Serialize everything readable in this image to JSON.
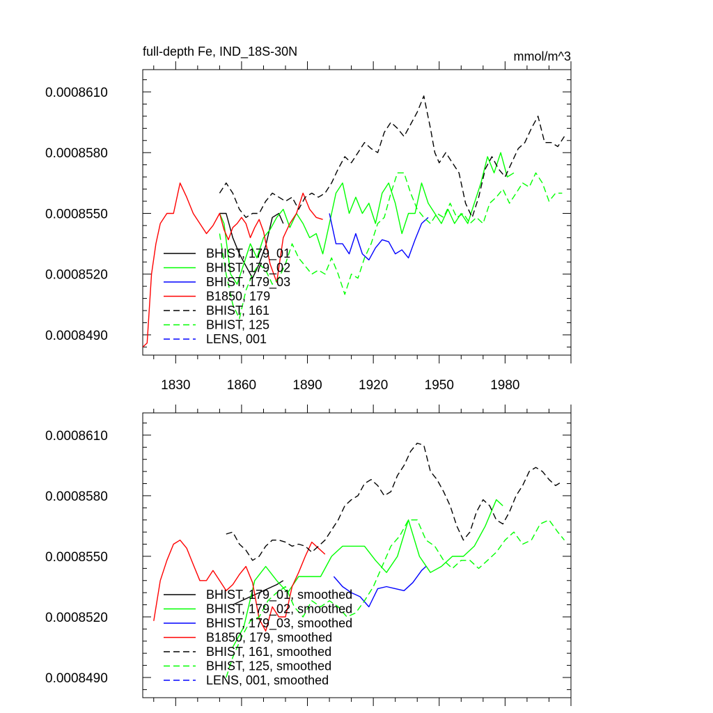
{
  "chart_data": [
    {
      "type": "line",
      "title": "full-depth Fe, IND_18S-30N",
      "units": "mmol/m^3",
      "xlim": [
        1815,
        2010
      ],
      "ylim": [
        0.000848,
        0.0008621
      ],
      "x_ticks": [
        1830,
        1860,
        1890,
        1920,
        1950,
        1980
      ],
      "y_ticks": [
        0.000849,
        0.000852,
        0.000855,
        0.000858,
        0.000861
      ],
      "y_tick_labels": [
        "0.0008490",
        "0.0008520",
        "0.0008550",
        "0.0008580",
        "0.0008610"
      ],
      "legend_position": "lower-left",
      "series": [
        {
          "name": "BHIST, 179_01",
          "color": "#000000",
          "dash": "solid",
          "x": [
            1850,
            1853,
            1856,
            1859,
            1862,
            1865,
            1868,
            1871,
            1874,
            1877,
            1879
          ],
          "values": [
            0.000855,
            0.000855,
            0.0008538,
            0.000853,
            0.0008524,
            0.0008518,
            0.0008525,
            0.0008534,
            0.0008548,
            0.000855,
            0.0008545
          ]
        },
        {
          "name": "BHIST, 179_02",
          "color": "#00ff00",
          "dash": "solid",
          "x": [
            1850,
            1852,
            1855,
            1858,
            1861,
            1864,
            1867,
            1870,
            1873,
            1876,
            1879,
            1882,
            1885,
            1888,
            1891,
            1894,
            1897,
            1900,
            1903,
            1906,
            1909,
            1912,
            1915,
            1918,
            1921,
            1924,
            1927,
            1930,
            1933,
            1936,
            1939,
            1942,
            1945,
            1948,
            1951,
            1954,
            1957,
            1960,
            1963,
            1966,
            1969,
            1972,
            1975,
            1978,
            1981,
            1984
          ],
          "values": [
            0.000855,
            0.0008545,
            0.000852,
            0.0008515,
            0.0008525,
            0.0008535,
            0.0008528,
            0.0008538,
            0.0008542,
            0.0008548,
            0.0008552,
            0.0008543,
            0.000855,
            0.0008545,
            0.0008538,
            0.000854,
            0.000853,
            0.0008545,
            0.000856,
            0.0008565,
            0.000855,
            0.0008558,
            0.000855,
            0.0008555,
            0.0008545,
            0.000856,
            0.0008565,
            0.0008555,
            0.000854,
            0.000855,
            0.000855,
            0.0008565,
            0.0008555,
            0.000855,
            0.0008545,
            0.0008552,
            0.0008545,
            0.000855,
            0.0008545,
            0.0008555,
            0.0008565,
            0.0008578,
            0.000857,
            0.000858,
            0.0008568,
            0.000857
          ]
        },
        {
          "name": "BHIST, 179_03",
          "color": "#0000ff",
          "dash": "solid",
          "x": [
            1900,
            1903,
            1906,
            1909,
            1912,
            1915,
            1918,
            1921,
            1924,
            1927,
            1930,
            1933,
            1936,
            1939,
            1942,
            1945
          ],
          "values": [
            0.000855,
            0.0008535,
            0.0008535,
            0.000853,
            0.000854,
            0.000853,
            0.0008527,
            0.0008533,
            0.0008537,
            0.0008536,
            0.000853,
            0.0008532,
            0.0008528,
            0.0008537,
            0.0008545,
            0.0008548
          ]
        },
        {
          "name": "B1850, 179",
          "color": "#ff0000",
          "dash": "solid",
          "x": [
            1815,
            1817,
            1819,
            1821,
            1823,
            1826,
            1829,
            1832,
            1835,
            1838,
            1841,
            1844,
            1847,
            1850,
            1852,
            1854,
            1856,
            1858,
            1860,
            1862,
            1864,
            1866,
            1868,
            1870,
            1873,
            1876,
            1879,
            1882,
            1885,
            1888,
            1891,
            1894,
            1897
          ],
          "values": [
            0.0008484,
            0.0008486,
            0.000852,
            0.0008535,
            0.0008545,
            0.000855,
            0.000855,
            0.0008565,
            0.0008558,
            0.000855,
            0.0008545,
            0.000854,
            0.0008544,
            0.000855,
            0.0008542,
            0.0008537,
            0.0008543,
            0.0008545,
            0.0008548,
            0.0008545,
            0.0008538,
            0.0008543,
            0.0008547,
            0.0008541,
            0.0008525,
            0.0008516,
            0.0008538,
            0.0008545,
            0.000855,
            0.000856,
            0.0008552,
            0.0008548,
            0.0008547
          ]
        },
        {
          "name": "BHIST, 161",
          "color": "#000000",
          "dash": "dashed",
          "x": [
            1850,
            1853,
            1856,
            1859,
            1862,
            1865,
            1868,
            1871,
            1874,
            1877,
            1880,
            1883,
            1886,
            1889,
            1892,
            1895,
            1898,
            1901,
            1904,
            1907,
            1910,
            1913,
            1916,
            1919,
            1922,
            1925,
            1928,
            1931,
            1934,
            1937,
            1940,
            1943,
            1946,
            1948,
            1950,
            1953,
            1956,
            1959,
            1962,
            1965,
            1968,
            1971,
            1974,
            1977,
            1980,
            1983,
            1986,
            1989,
            1992,
            1995,
            1998,
            2001,
            2004,
            2007
          ],
          "values": [
            0.000856,
            0.0008565,
            0.000856,
            0.0008552,
            0.0008548,
            0.000855,
            0.000855,
            0.0008556,
            0.000856,
            0.0008558,
            0.0008556,
            0.0008558,
            0.0008552,
            0.0008558,
            0.000856,
            0.0008558,
            0.000856,
            0.0008565,
            0.0008572,
            0.0008578,
            0.0008575,
            0.000858,
            0.0008585,
            0.0008582,
            0.000858,
            0.000859,
            0.0008595,
            0.0008592,
            0.0008588,
            0.0008594,
            0.00086,
            0.0008608,
            0.0008592,
            0.000858,
            0.0008575,
            0.000858,
            0.0008575,
            0.000857,
            0.0008555,
            0.0008548,
            0.0008558,
            0.0008572,
            0.0008578,
            0.0008572,
            0.0008568,
            0.0008575,
            0.0008582,
            0.0008585,
            0.0008592,
            0.0008598,
            0.0008585,
            0.0008585,
            0.0008583,
            0.0008588
          ]
        },
        {
          "name": "BHIST, 125",
          "color": "#00ff00",
          "dash": "dashed",
          "x": [
            1850,
            1853,
            1856,
            1859,
            1862,
            1865,
            1868,
            1871,
            1874,
            1877,
            1880,
            1883,
            1886,
            1889,
            1892,
            1895,
            1898,
            1901,
            1904,
            1907,
            1910,
            1913,
            1916,
            1919,
            1922,
            1925,
            1928,
            1931,
            1934,
            1937,
            1940,
            1943,
            1946,
            1949,
            1952,
            1955,
            1958,
            1961,
            1964,
            1967,
            1970,
            1973,
            1976,
            1979,
            1982,
            1985,
            1988,
            1991,
            1994,
            1997,
            2000,
            2003,
            2006
          ],
          "values": [
            0.000854,
            0.000852,
            0.0008505,
            0.0008498,
            0.0008512,
            0.000852,
            0.0008525,
            0.0008522,
            0.0008515,
            0.0008518,
            0.0008525,
            0.0008535,
            0.0008528,
            0.0008524,
            0.000852,
            0.0008522,
            0.000852,
            0.0008528,
            0.000852,
            0.000851,
            0.000852,
            0.0008518,
            0.0008528,
            0.0008535,
            0.0008545,
            0.0008548,
            0.000856,
            0.000857,
            0.000857,
            0.000856,
            0.0008552,
            0.0008548,
            0.0008545,
            0.000855,
            0.0008548,
            0.0008555,
            0.0008548,
            0.000855,
            0.0008545,
            0.0008548,
            0.0008545,
            0.0008555,
            0.0008558,
            0.0008562,
            0.0008555,
            0.000856,
            0.0008565,
            0.0008563,
            0.000857,
            0.0008565,
            0.0008556,
            0.000856,
            0.000856
          ]
        },
        {
          "name": "LENS, 001",
          "color": "#0000ff",
          "dash": "dashed",
          "x": [],
          "values": []
        }
      ]
    },
    {
      "type": "line",
      "xlim": [
        1815,
        2010
      ],
      "ylim": [
        0.000848,
        0.0008621
      ],
      "y_ticks": [
        0.000849,
        0.000852,
        0.000855,
        0.000858,
        0.000861
      ],
      "y_tick_labels": [
        "0.0008490",
        "0.0008520",
        "0.0008550",
        "0.0008580",
        "0.0008610"
      ],
      "legend_position": "lower-left",
      "series": [
        {
          "name": "BHIST, 179_01, smoothed",
          "color": "#000000",
          "dash": "solid",
          "x": [
            1856,
            1860,
            1864,
            1868,
            1872,
            1876,
            1879
          ],
          "values": [
            0.0008526,
            0.0008528,
            0.000853,
            0.0008532,
            0.0008534,
            0.0008536,
            0.0008538
          ]
        },
        {
          "name": "BHIST, 179_02, smoothed",
          "color": "#00ff00",
          "dash": "solid",
          "x": [
            1856,
            1861,
            1866,
            1871,
            1876,
            1881,
            1886,
            1891,
            1896,
            1901,
            1906,
            1911,
            1916,
            1921,
            1926,
            1931,
            1936,
            1941,
            1946,
            1951,
            1956,
            1961,
            1966,
            1971,
            1976,
            1979
          ],
          "values": [
            0.0008505,
            0.0008515,
            0.0008538,
            0.0008545,
            0.0008538,
            0.0008532,
            0.000854,
            0.000854,
            0.000854,
            0.000855,
            0.0008555,
            0.0008555,
            0.0008555,
            0.0008548,
            0.0008542,
            0.000855,
            0.0008568,
            0.000855,
            0.0008542,
            0.0008545,
            0.000855,
            0.000855,
            0.0008555,
            0.0008565,
            0.0008578,
            0.0008575
          ]
        },
        {
          "name": "BHIST, 179_03, smoothed",
          "color": "#0000ff",
          "dash": "solid",
          "x": [
            1902,
            1906,
            1910,
            1914,
            1918,
            1922,
            1926,
            1930,
            1934,
            1938,
            1942,
            1944
          ],
          "values": [
            0.000854,
            0.0008535,
            0.0008532,
            0.000853,
            0.0008525,
            0.0008534,
            0.0008535,
            0.0008534,
            0.0008533,
            0.0008537,
            0.0008543,
            0.0008545
          ]
        },
        {
          "name": "B1850, 179, smoothed",
          "color": "#ff0000",
          "dash": "solid",
          "x": [
            1820,
            1823,
            1826,
            1829,
            1832,
            1835,
            1838,
            1841,
            1844,
            1847,
            1850,
            1853,
            1856,
            1859,
            1862,
            1865,
            1868,
            1871,
            1874,
            1877,
            1880,
            1883,
            1886,
            1889,
            1892,
            1895,
            1898
          ],
          "values": [
            0.0008518,
            0.0008538,
            0.0008548,
            0.0008556,
            0.0008558,
            0.0008554,
            0.0008546,
            0.0008538,
            0.0008538,
            0.0008543,
            0.0008538,
            0.0008533,
            0.0008536,
            0.0008541,
            0.0008545,
            0.0008537,
            0.0008519,
            0.0008513,
            0.0008525,
            0.000852,
            0.000852,
            0.0008535,
            0.0008542,
            0.000855,
            0.0008557,
            0.0008554,
            0.0008551
          ]
        },
        {
          "name": "BHIST, 161, smoothed",
          "color": "#000000",
          "dash": "dashed",
          "x": [
            1853,
            1856,
            1859,
            1862,
            1865,
            1868,
            1871,
            1874,
            1877,
            1880,
            1883,
            1886,
            1889,
            1892,
            1895,
            1898,
            1901,
            1904,
            1907,
            1910,
            1913,
            1916,
            1919,
            1922,
            1925,
            1928,
            1931,
            1934,
            1937,
            1940,
            1943,
            1946,
            1949,
            1952,
            1955,
            1958,
            1961,
            1964,
            1967,
            1970,
            1973,
            1976,
            1979,
            1982,
            1985,
            1988,
            1991,
            1994,
            1997,
            2000,
            2003,
            2006
          ],
          "values": [
            0.0008561,
            0.0008562,
            0.0008556,
            0.0008553,
            0.0008548,
            0.000855,
            0.0008555,
            0.0008558,
            0.0008558,
            0.0008557,
            0.0008555,
            0.0008556,
            0.0008555,
            0.0008552,
            0.0008555,
            0.0008558,
            0.0008563,
            0.0008568,
            0.0008575,
            0.0008578,
            0.000858,
            0.0008586,
            0.0008588,
            0.0008585,
            0.000858,
            0.0008582,
            0.000859,
            0.0008595,
            0.0008602,
            0.0008606,
            0.0008605,
            0.0008592,
            0.0008588,
            0.0008582,
            0.0008575,
            0.0008565,
            0.0008558,
            0.0008562,
            0.0008572,
            0.0008578,
            0.0008575,
            0.0008568,
            0.0008566,
            0.0008572,
            0.000858,
            0.0008585,
            0.0008592,
            0.0008594,
            0.0008592,
            0.0008588,
            0.0008585,
            0.0008587
          ]
        },
        {
          "name": "BHIST, 125, smoothed",
          "color": "#00ff00",
          "dash": "dashed",
          "x": [
            1853,
            1856,
            1860,
            1864,
            1868,
            1872,
            1876,
            1880,
            1884,
            1888,
            1892,
            1896,
            1900,
            1904,
            1908,
            1912,
            1916,
            1920,
            1924,
            1928,
            1932,
            1936,
            1940,
            1944,
            1948,
            1952,
            1956,
            1960,
            1964,
            1968,
            1972,
            1976,
            1980,
            1984,
            1988,
            1992,
            1996,
            2000,
            2004,
            2007
          ],
          "values": [
            0.000849,
            0.00085,
            0.000851,
            0.0008518,
            0.000852,
            0.0008528,
            0.0008532,
            0.0008535,
            0.0008525,
            0.000852,
            0.0008528,
            0.0008525,
            0.0008528,
            0.0008525,
            0.000852,
            0.0008522,
            0.0008528,
            0.0008535,
            0.0008545,
            0.0008555,
            0.000856,
            0.0008568,
            0.0008568,
            0.0008558,
            0.0008555,
            0.0008548,
            0.0008544,
            0.0008548,
            0.0008548,
            0.0008544,
            0.0008548,
            0.0008552,
            0.0008558,
            0.0008562,
            0.0008556,
            0.0008558,
            0.0008566,
            0.0008568,
            0.0008562,
            0.0008558
          ]
        },
        {
          "name": "LENS, 001, smoothed",
          "color": "#0000ff",
          "dash": "dashed",
          "x": [],
          "values": []
        }
      ]
    }
  ]
}
